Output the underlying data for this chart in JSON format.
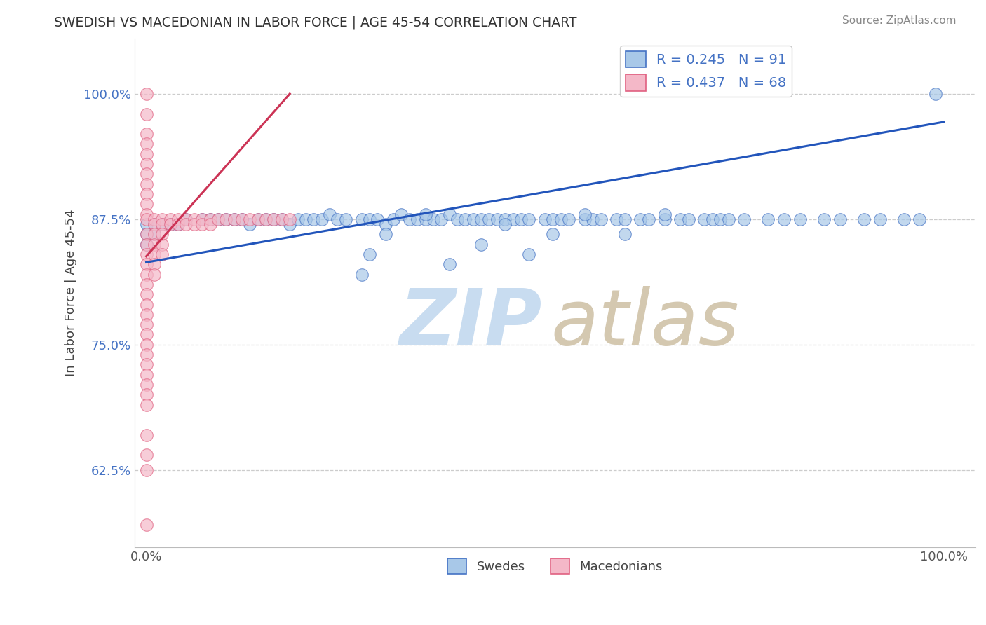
{
  "title": "SWEDISH VS MACEDONIAN IN LABOR FORCE | AGE 45-54 CORRELATION CHART",
  "source_text": "Source: ZipAtlas.com",
  "ylabel": "In Labor Force | Age 45-54",
  "y_tick_labels": [
    "62.5%",
    "75.0%",
    "87.5%",
    "100.0%"
  ],
  "y_ticks": [
    0.625,
    0.75,
    0.875,
    1.0
  ],
  "x_tick_labels": [
    "0.0%",
    "100.0%"
  ],
  "x_ticks": [
    0.0,
    1.0
  ],
  "blue_color": "#a8c8e8",
  "blue_edge_color": "#4472c4",
  "pink_color": "#f4b8c8",
  "pink_edge_color": "#e06080",
  "trend_blue_color": "#2255bb",
  "trend_pink_color": "#cc3355",
  "blue_R": 0.245,
  "blue_N": 91,
  "pink_R": 0.437,
  "pink_N": 68,
  "legend_text_color": "#4472c4",
  "watermark_zip_color": "#c8dcf0",
  "watermark_atlas_color": "#d4c8b0",
  "grid_color": "#cccccc",
  "blue_trend_x": [
    0.0,
    1.0
  ],
  "blue_trend_y": [
    0.832,
    0.972
  ],
  "pink_trend_x": [
    0.0,
    0.18
  ],
  "pink_trend_y": [
    0.838,
    1.0
  ],
  "blue_x": [
    0.0,
    0.0,
    0.0,
    0.01,
    0.01,
    0.02,
    0.03,
    0.04,
    0.05,
    0.07,
    0.08,
    0.09,
    0.1,
    0.11,
    0.12,
    0.13,
    0.14,
    0.15,
    0.16,
    0.17,
    0.18,
    0.19,
    0.2,
    0.21,
    0.22,
    0.23,
    0.24,
    0.25,
    0.27,
    0.28,
    0.29,
    0.3,
    0.31,
    0.32,
    0.33,
    0.34,
    0.35,
    0.36,
    0.37,
    0.38,
    0.39,
    0.4,
    0.41,
    0.42,
    0.43,
    0.44,
    0.45,
    0.46,
    0.47,
    0.48,
    0.5,
    0.51,
    0.52,
    0.53,
    0.55,
    0.56,
    0.57,
    0.59,
    0.6,
    0.62,
    0.63,
    0.65,
    0.67,
    0.68,
    0.7,
    0.71,
    0.72,
    0.73,
    0.75,
    0.78,
    0.8,
    0.82,
    0.85,
    0.87,
    0.9,
    0.92,
    0.95,
    0.97,
    0.99,
    0.27,
    0.28,
    0.3,
    0.35,
    0.38,
    0.42,
    0.45,
    0.48,
    0.51,
    0.55,
    0.6,
    0.65
  ],
  "blue_y": [
    0.87,
    0.86,
    0.85,
    0.87,
    0.86,
    0.87,
    0.87,
    0.87,
    0.875,
    0.875,
    0.875,
    0.875,
    0.875,
    0.875,
    0.875,
    0.87,
    0.875,
    0.875,
    0.875,
    0.875,
    0.87,
    0.875,
    0.875,
    0.875,
    0.875,
    0.88,
    0.875,
    0.875,
    0.875,
    0.875,
    0.875,
    0.87,
    0.875,
    0.88,
    0.875,
    0.875,
    0.875,
    0.875,
    0.875,
    0.88,
    0.875,
    0.875,
    0.875,
    0.875,
    0.875,
    0.875,
    0.875,
    0.875,
    0.875,
    0.875,
    0.875,
    0.875,
    0.875,
    0.875,
    0.875,
    0.875,
    0.875,
    0.875,
    0.875,
    0.875,
    0.875,
    0.875,
    0.875,
    0.875,
    0.875,
    0.875,
    0.875,
    0.875,
    0.875,
    0.875,
    0.875,
    0.875,
    0.875,
    0.875,
    0.875,
    0.875,
    0.875,
    0.875,
    1.0,
    0.82,
    0.84,
    0.86,
    0.88,
    0.83,
    0.85,
    0.87,
    0.84,
    0.86,
    0.88,
    0.86,
    0.88
  ],
  "pink_x": [
    0.0,
    0.0,
    0.0,
    0.0,
    0.0,
    0.0,
    0.0,
    0.0,
    0.0,
    0.0,
    0.0,
    0.0,
    0.0,
    0.0,
    0.0,
    0.0,
    0.0,
    0.0,
    0.0,
    0.0,
    0.0,
    0.0,
    0.0,
    0.0,
    0.0,
    0.0,
    0.0,
    0.0,
    0.0,
    0.0,
    0.01,
    0.01,
    0.01,
    0.01,
    0.01,
    0.01,
    0.01,
    0.02,
    0.02,
    0.02,
    0.02,
    0.02,
    0.03,
    0.03,
    0.04,
    0.04,
    0.05,
    0.05,
    0.06,
    0.06,
    0.07,
    0.07,
    0.08,
    0.08,
    0.09,
    0.1,
    0.11,
    0.12,
    0.13,
    0.14,
    0.15,
    0.16,
    0.17,
    0.18,
    0.0,
    0.0,
    0.0,
    0.0
  ],
  "pink_y": [
    1.0,
    0.98,
    0.96,
    0.95,
    0.94,
    0.93,
    0.92,
    0.91,
    0.9,
    0.89,
    0.88,
    0.875,
    0.86,
    0.85,
    0.84,
    0.83,
    0.82,
    0.81,
    0.8,
    0.79,
    0.78,
    0.77,
    0.76,
    0.75,
    0.74,
    0.73,
    0.72,
    0.71,
    0.7,
    0.69,
    0.875,
    0.87,
    0.86,
    0.85,
    0.84,
    0.83,
    0.82,
    0.875,
    0.87,
    0.86,
    0.85,
    0.84,
    0.875,
    0.87,
    0.875,
    0.87,
    0.875,
    0.87,
    0.875,
    0.87,
    0.875,
    0.87,
    0.875,
    0.87,
    0.875,
    0.875,
    0.875,
    0.875,
    0.875,
    0.875,
    0.875,
    0.875,
    0.875,
    0.875,
    0.66,
    0.64,
    0.625,
    0.57
  ]
}
